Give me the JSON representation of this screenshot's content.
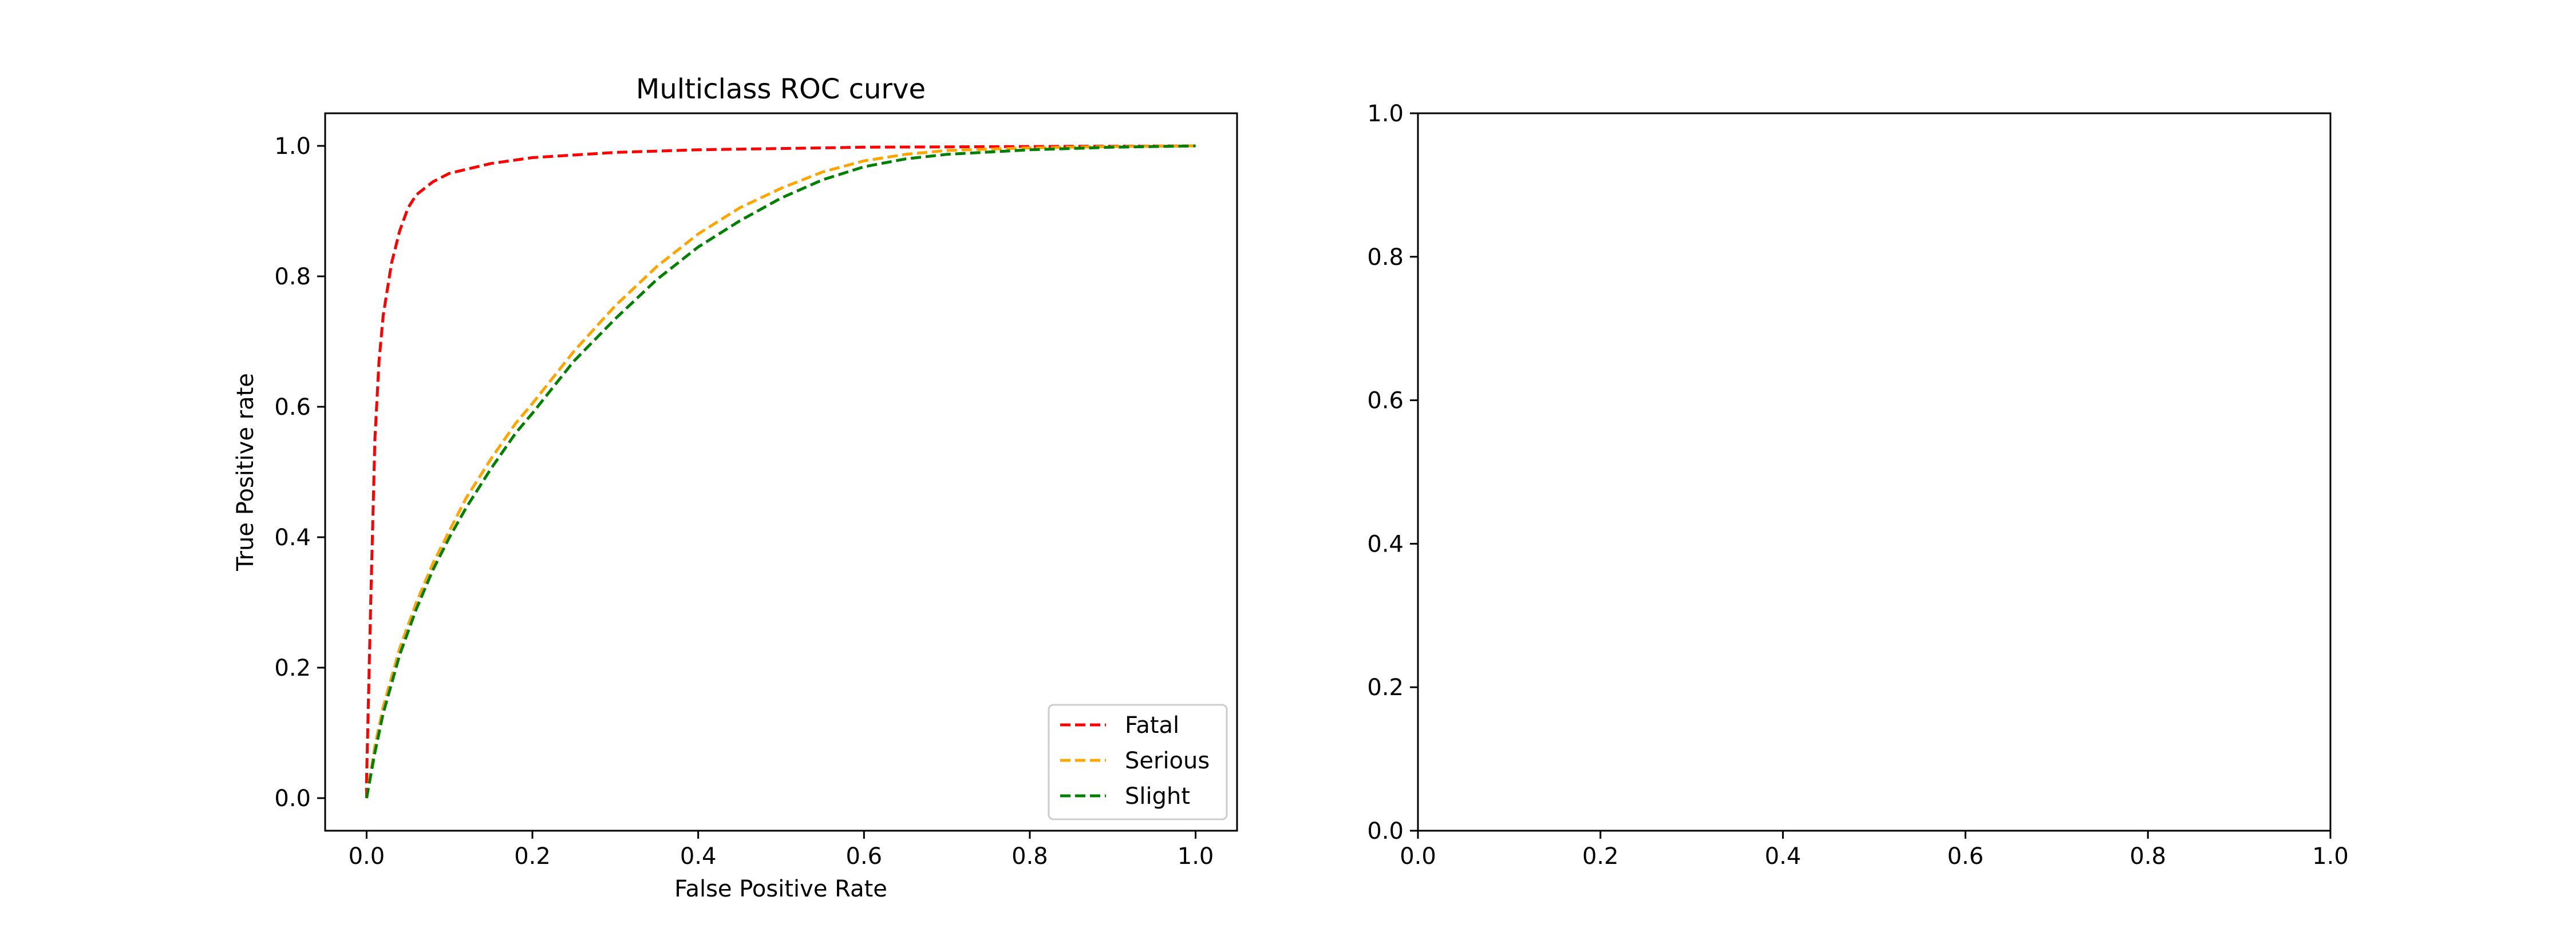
{
  "chart_data": [
    {
      "type": "line",
      "title": "Multiclass ROC curve",
      "xlabel": "False Positive Rate",
      "ylabel": "True Positive rate",
      "xlim": [
        -0.05,
        1.05
      ],
      "ylim": [
        -0.05,
        1.05
      ],
      "xticks": [
        "0.0",
        "0.2",
        "0.4",
        "0.6",
        "0.8",
        "1.0"
      ],
      "yticks": [
        "0.0",
        "0.2",
        "0.4",
        "0.6",
        "0.8",
        "1.0"
      ],
      "grid": false,
      "legend_position": "lower-right",
      "line_style": "dashed",
      "series": [
        {
          "name": "Fatal",
          "color": "#ff0000",
          "x": [
            0.0,
            0.0,
            0.005,
            0.01,
            0.015,
            0.02,
            0.03,
            0.04,
            0.05,
            0.06,
            0.08,
            0.1,
            0.15,
            0.2,
            0.3,
            0.4,
            0.5,
            0.6,
            0.8,
            1.0
          ],
          "y": [
            0.0,
            0.03,
            0.3,
            0.55,
            0.67,
            0.74,
            0.82,
            0.87,
            0.905,
            0.925,
            0.945,
            0.958,
            0.973,
            0.982,
            0.99,
            0.994,
            0.996,
            0.998,
            0.999,
            1.0
          ]
        },
        {
          "name": "Serious",
          "color": "#ffa500",
          "x": [
            0.0,
            0.01,
            0.02,
            0.04,
            0.06,
            0.08,
            0.1,
            0.12,
            0.15,
            0.18,
            0.2,
            0.25,
            0.3,
            0.35,
            0.4,
            0.45,
            0.5,
            0.55,
            0.6,
            0.65,
            0.7,
            0.8,
            0.9,
            1.0
          ],
          "y": [
            0.0,
            0.08,
            0.14,
            0.23,
            0.3,
            0.36,
            0.41,
            0.46,
            0.52,
            0.575,
            0.605,
            0.685,
            0.755,
            0.815,
            0.865,
            0.905,
            0.935,
            0.96,
            0.977,
            0.987,
            0.993,
            0.997,
            0.999,
            1.0
          ]
        },
        {
          "name": "Slight",
          "color": "#008000",
          "x": [
            0.0,
            0.01,
            0.02,
            0.04,
            0.06,
            0.08,
            0.1,
            0.12,
            0.15,
            0.18,
            0.2,
            0.25,
            0.3,
            0.35,
            0.4,
            0.45,
            0.5,
            0.55,
            0.6,
            0.65,
            0.7,
            0.8,
            0.9,
            1.0
          ],
          "y": [
            0.0,
            0.07,
            0.13,
            0.22,
            0.29,
            0.35,
            0.4,
            0.445,
            0.505,
            0.56,
            0.59,
            0.67,
            0.735,
            0.795,
            0.845,
            0.885,
            0.92,
            0.948,
            0.968,
            0.98,
            0.987,
            0.994,
            0.998,
            1.0
          ]
        }
      ]
    },
    {
      "type": "line",
      "title": "",
      "xlabel": "",
      "ylabel": "",
      "xlim": [
        0.0,
        1.0
      ],
      "ylim": [
        0.0,
        1.0
      ],
      "xticks": [
        "0.0",
        "0.2",
        "0.4",
        "0.6",
        "0.8",
        "1.0"
      ],
      "yticks": [
        "0.0",
        "0.2",
        "0.4",
        "0.6",
        "0.8",
        "1.0"
      ],
      "grid": false,
      "series": []
    }
  ]
}
